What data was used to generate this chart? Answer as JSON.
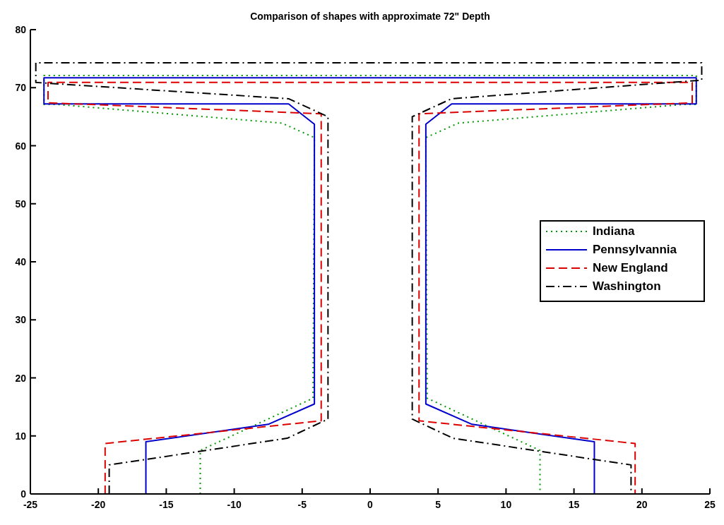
{
  "chart_data": {
    "type": "line",
    "title": "Comparison of shapes with approximate 72\" Depth",
    "xlim": [
      -25,
      25
    ],
    "ylim": [
      0,
      80
    ],
    "xticks": [
      -25,
      -20,
      -15,
      -10,
      -5,
      0,
      5,
      10,
      15,
      20,
      25
    ],
    "yticks": [
      0,
      10,
      20,
      30,
      40,
      50,
      60,
      70,
      80
    ],
    "grid": false,
    "legend": "right",
    "marker": "none",
    "series": [
      {
        "name": "Indiana",
        "color": "#009900",
        "line_style": "dotted",
        "x": [
          -12.5,
          -12.5,
          -4.2,
          -4.1,
          -6.5,
          -23,
          -24,
          -24,
          24,
          24,
          23,
          6.5,
          4.1,
          4.2,
          12.5,
          12.5
        ],
        "values": [
          0,
          7.5,
          16.5,
          61.4,
          63.9,
          67.1,
          67.1,
          72.1,
          72.1,
          67.1,
          67.1,
          63.9,
          61.4,
          16.5,
          7.5,
          0
        ]
      },
      {
        "name": "Pennsylvannia",
        "color": "#0000cc",
        "line_style": "solid",
        "x": [
          -16.5,
          -16.5,
          -7.5,
          -4.1,
          -4.1,
          -6,
          -24,
          -24,
          24,
          24,
          6,
          4.1,
          4.1,
          7.5,
          16.5,
          16.5
        ],
        "values": [
          0,
          9,
          12,
          15.5,
          63.7,
          67.2,
          67.2,
          71.7,
          71.7,
          67.2,
          67.2,
          63.7,
          15.5,
          12,
          9,
          0
        ]
      },
      {
        "name": "New England",
        "color": "#dd0000",
        "line_style": "dashed",
        "x": [
          -19.5,
          -19.5,
          -3.6,
          -3.6,
          -23.7,
          -23.7,
          23.7,
          23.7,
          3.6,
          3.6,
          19.5,
          19.5
        ],
        "values": [
          0,
          8.7,
          12.6,
          65.5,
          67.4,
          70.9,
          70.9,
          67.4,
          65.5,
          12.6,
          8.7,
          0
        ]
      },
      {
        "name": "Washington",
        "color": "#000000",
        "line_style": "dashdot",
        "x": [
          -19.2,
          -19.2,
          -6.1,
          -3.1,
          -3.1,
          -6,
          -24.6,
          -24.6,
          24.4,
          24.4,
          6,
          3.1,
          3.1,
          6.1,
          19.2,
          19.2
        ],
        "values": [
          0,
          5,
          9.6,
          12.9,
          65,
          68.1,
          70.9,
          74.3,
          74.3,
          71.3,
          68.1,
          65,
          12.9,
          9.6,
          5,
          0
        ]
      }
    ]
  }
}
